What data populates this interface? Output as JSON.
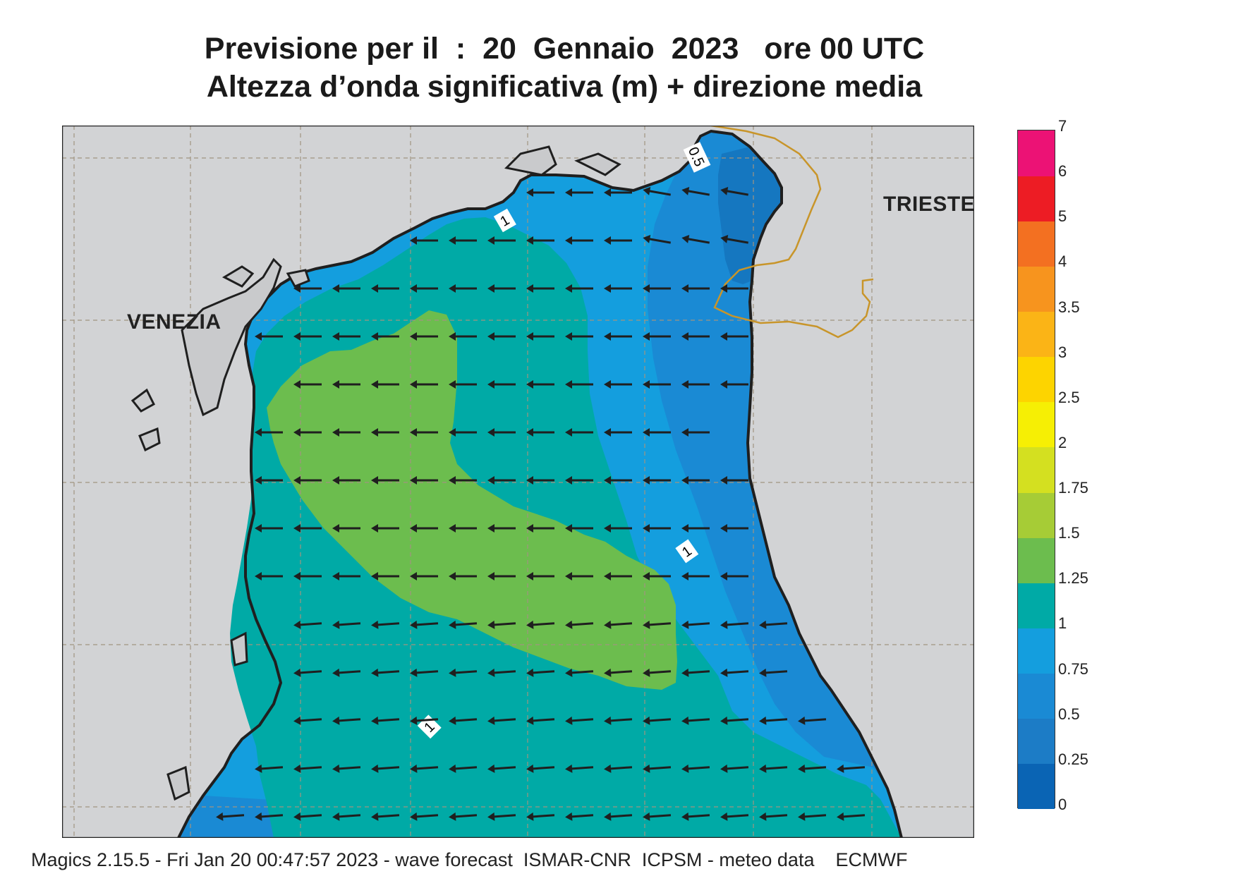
{
  "title": {
    "line1": "Previsione per il  :  20  Gennaio  2023   ore 00 UTC",
    "line2": "Altezza d’onda significativa (m) + direzione media"
  },
  "cities": {
    "venezia": "VENEZIA",
    "trieste": "TRIESTE"
  },
  "contour_labels": [
    "1",
    "0.5",
    "1",
    "1"
  ],
  "colorbar": {
    "ticks": [
      "0",
      "0.25",
      "0.5",
      "0.75",
      "1",
      "1.25",
      "1.5",
      "1.75",
      "2",
      "2.5",
      "3",
      "3.5",
      "4",
      "5",
      "6",
      "7"
    ],
    "colors": [
      "#0a64b4",
      "#1c7cc6",
      "#1a8ad4",
      "#149ede",
      "#00aaa6",
      "#6cbd4e",
      "#a6cc36",
      "#d4e020",
      "#f6ef04",
      "#fdd400",
      "#fbb416",
      "#f7941e",
      "#f37021",
      "#ed1c24",
      "#ec1275"
    ]
  },
  "colors": {
    "land": "#d2d3d5",
    "border": "#c8952a",
    "sea_low": "#1583c8",
    "sea_mid": "#149ede",
    "sea_teal": "#00aaa6",
    "sea_green": "#6cbd4e"
  },
  "footer": "Magics 2.15.5 - Fri Jan 20 00:47:57 2023 - wave forecast  ISMAR-CNR  ICPSM - meteo data    ECMWF"
}
